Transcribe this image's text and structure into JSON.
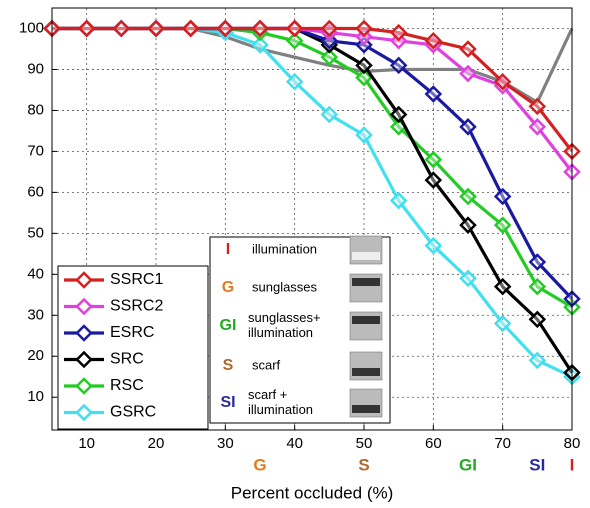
{
  "chart_data": {
    "type": "line",
    "xlabel": "Percent occluded (%)",
    "x": [
      5,
      10,
      15,
      20,
      25,
      30,
      35,
      40,
      45,
      50,
      55,
      60,
      65,
      70,
      75,
      80
    ],
    "xlim": [
      5,
      80
    ],
    "xticks": [
      10,
      20,
      30,
      40,
      50,
      60,
      70,
      80
    ],
    "ylim": [
      2,
      105
    ],
    "yticks": [
      10,
      20,
      30,
      40,
      50,
      60,
      70,
      80,
      90,
      100
    ],
    "grid": true,
    "legend": "lower left",
    "series": [
      {
        "name": "SSRC1",
        "color": "#d42020",
        "values": [
          100,
          100,
          100,
          100,
          100,
          100,
          100,
          100,
          100,
          100,
          99,
          97,
          95,
          87,
          81,
          70
        ]
      },
      {
        "name": "SSRC2",
        "color": "#e040e0",
        "values": [
          100,
          100,
          100,
          100,
          100,
          100,
          100,
          100,
          99,
          98,
          97,
          96,
          89,
          86,
          76,
          65
        ]
      },
      {
        "name": "ESRC",
        "color": "#1a1aa0",
        "values": [
          100,
          100,
          100,
          100,
          100,
          100,
          100,
          100,
          97,
          96,
          91,
          84,
          76,
          59,
          43,
          34
        ]
      },
      {
        "name": "SRC",
        "color": "#000000",
        "values": [
          100,
          100,
          100,
          100,
          100,
          100,
          100,
          100,
          96,
          91,
          79,
          63,
          52,
          37,
          29,
          16
        ]
      },
      {
        "name": "RSC",
        "color": "#22cc22",
        "values": [
          100,
          100,
          100,
          100,
          100,
          100,
          99,
          97,
          93,
          88,
          76,
          68,
          59,
          52,
          37,
          32
        ]
      },
      {
        "name": "GSRC",
        "color": "#40e0f0",
        "values": [
          100,
          100,
          100,
          100,
          100,
          99,
          96,
          87,
          79,
          74,
          58,
          47,
          39,
          28,
          19,
          15
        ]
      },
      {
        "color": "#808080",
        "values": [
          100,
          100,
          100,
          100,
          100,
          98,
          95,
          93,
          91,
          89.5,
          90,
          90,
          90,
          87,
          82,
          100
        ]
      }
    ],
    "annotations": [
      {
        "x": 35,
        "label": "G",
        "color": "#e07b20"
      },
      {
        "x": 50,
        "label": "S",
        "color": "#b06a30"
      },
      {
        "x": 65,
        "label": "GI",
        "color": "#22aa22"
      },
      {
        "x": 75,
        "label": "SI",
        "color": "#2a2aa0"
      },
      {
        "x": 80,
        "label": "I",
        "color": "#d42020"
      }
    ],
    "key": [
      {
        "code": "I",
        "color": "#d42020",
        "text": [
          "illumination"
        ]
      },
      {
        "code": "G",
        "color": "#e07b20",
        "text": [
          "sunglasses"
        ]
      },
      {
        "code": "GI",
        "color": "#22aa22",
        "text": [
          "sunglasses+",
          "illumination"
        ]
      },
      {
        "code": "S",
        "color": "#b06a30",
        "text": [
          "scarf"
        ]
      },
      {
        "code": "SI",
        "color": "#2a2aa0",
        "text": [
          "scarf +",
          "illumination"
        ]
      }
    ]
  }
}
